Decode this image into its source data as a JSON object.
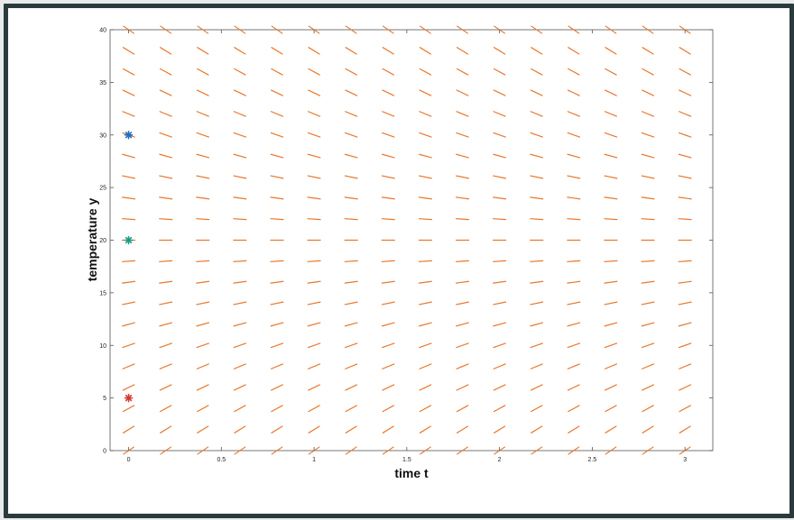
{
  "chart_data": {
    "type": "scatter",
    "subtype": "slope-field",
    "title": "",
    "xlabel": "time t",
    "ylabel": "temperature y",
    "xlim": [
      -0.1,
      3.15
    ],
    "ylim": [
      0,
      40
    ],
    "xticks": [
      "0",
      "0.5",
      "1",
      "1.5",
      "2",
      "2.5",
      "3"
    ],
    "yticks": [
      "0",
      "5",
      "10",
      "15",
      "20",
      "25",
      "30",
      "35",
      "40"
    ],
    "slope_field": {
      "equation_form": "dy/dt = k*(20 - y)",
      "equilibrium": 20,
      "k": 0.6,
      "t_values": [
        0,
        0.2,
        0.4,
        0.6,
        0.8,
        1.0,
        1.2,
        1.4,
        1.6,
        1.8,
        2.0,
        2.2,
        2.4,
        2.6,
        2.8,
        3.0
      ],
      "y_values": [
        0,
        2,
        4,
        6,
        8,
        10,
        12,
        14,
        16,
        18,
        20,
        22,
        24,
        26,
        28,
        30,
        32,
        34,
        36,
        38,
        40
      ],
      "color": "#e8782e"
    },
    "series": [
      {
        "marker": "asterisk",
        "color": "#1f6fc0",
        "x": [
          0
        ],
        "y": [
          30
        ]
      },
      {
        "marker": "asterisk",
        "color": "#169a86",
        "x": [
          0
        ],
        "y": [
          20
        ]
      },
      {
        "marker": "asterisk",
        "color": "#d03a2c",
        "x": [
          0
        ],
        "y": [
          5
        ]
      }
    ],
    "grid": false,
    "legend": "none"
  }
}
